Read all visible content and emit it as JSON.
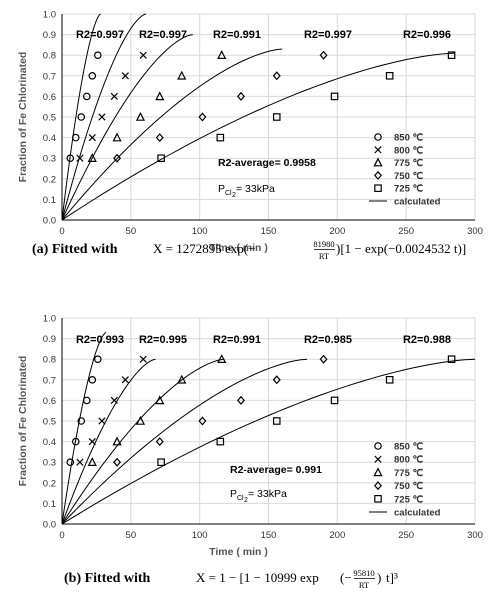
{
  "chart_data": [
    {
      "type": "scatter",
      "panel": "a",
      "xlabel": "Time ( min )",
      "ylabel": "Fraction of Fe Chlorinated",
      "xlim": [
        0,
        300
      ],
      "ylim": [
        0,
        1.0
      ],
      "x_ticks": [
        "0",
        "50",
        "100",
        "150",
        "200",
        "250",
        "300"
      ],
      "y_ticks": [
        "0.0",
        "0.1",
        "0.2",
        "0.3",
        "0.4",
        "0.5",
        "0.6",
        "0.7",
        "0.8",
        "0.9",
        "1.0"
      ],
      "grid": true,
      "legend_position": "bottom-right",
      "series": [
        {
          "name": "850 ℃",
          "marker": "circle",
          "x": [
            6,
            10,
            14,
            18,
            22,
            26
          ],
          "y": [
            0.3,
            0.4,
            0.5,
            0.6,
            0.7,
            0.8
          ],
          "fit_end": [
            28,
            1.0
          ]
        },
        {
          "name": "800 ℃",
          "marker": "cross",
          "x": [
            13,
            22,
            29,
            38,
            46,
            59
          ],
          "y": [
            0.3,
            0.4,
            0.5,
            0.6,
            0.7,
            0.8
          ],
          "fit_end": [
            61,
            1.0
          ]
        },
        {
          "name": "775 ℃",
          "marker": "triangle",
          "x": [
            22,
            40,
            57,
            71,
            87,
            116
          ],
          "y": [
            0.3,
            0.4,
            0.5,
            0.6,
            0.7,
            0.8
          ],
          "fit_end": [
            95,
            0.9
          ]
        },
        {
          "name": "750 ℃",
          "marker": "diamond",
          "x": [
            40,
            71,
            102,
            130,
            156,
            190
          ],
          "y": [
            0.3,
            0.4,
            0.5,
            0.6,
            0.7,
            0.8
          ],
          "fit_end": [
            160,
            0.83
          ]
        },
        {
          "name": "725 ℃",
          "marker": "square",
          "x": [
            72,
            115,
            156,
            198,
            238,
            283
          ],
          "y": [
            0.3,
            0.4,
            0.5,
            0.6,
            0.7,
            0.8
          ],
          "fit_end": [
            285,
            0.81
          ]
        }
      ],
      "fit_legend": "calculated",
      "r2_labels": [
        "R2=0.997",
        "R2=0.997",
        "R2=0.991",
        "R2=0.997",
        "R2=0.996"
      ],
      "r2_average": "R2-average= 0.9958",
      "pressure_main": "P",
      "pressure_sub": "Cl",
      "pressure_subsub": "2",
      "pressure_value": " = 33kPa",
      "caption_prefix": "(a) Fitted  with",
      "caption_equation": "X = 1272895 exp(−",
      "caption_frac_num": "81980",
      "caption_frac_den": "RT",
      "caption_equation_tail": ")[1 − exp(−0.0024532 t)]"
    },
    {
      "type": "scatter",
      "panel": "b",
      "xlabel": "Time ( min )",
      "ylabel": "Fraction of Fe Chlorinated",
      "xlim": [
        0,
        300
      ],
      "ylim": [
        0,
        1.0
      ],
      "x_ticks": [
        "0",
        "50",
        "100",
        "150",
        "200",
        "250",
        "300"
      ],
      "y_ticks": [
        "0.0",
        "0.1",
        "0.2",
        "0.3",
        "0.4",
        "0.5",
        "0.6",
        "0.7",
        "0.8",
        "0.9",
        "1.0"
      ],
      "grid": true,
      "legend_position": "bottom-right",
      "series": [
        {
          "name": "850 ℃",
          "marker": "circle",
          "x": [
            6,
            10,
            14,
            18,
            22,
            26
          ],
          "y": [
            0.3,
            0.4,
            0.5,
            0.6,
            0.7,
            0.8
          ],
          "fit_end": [
            32,
            0.93
          ]
        },
        {
          "name": "800 ℃",
          "marker": "cross",
          "x": [
            13,
            22,
            29,
            38,
            46,
            59
          ],
          "y": [
            0.3,
            0.4,
            0.5,
            0.6,
            0.7,
            0.8
          ],
          "fit_end": [
            68,
            0.8
          ]
        },
        {
          "name": "775 ℃",
          "marker": "triangle",
          "x": [
            22,
            40,
            57,
            71,
            87,
            116
          ],
          "y": [
            0.3,
            0.4,
            0.5,
            0.6,
            0.7,
            0.8
          ],
          "fit_end": [
            118,
            0.8
          ]
        },
        {
          "name": "750 ℃",
          "marker": "diamond",
          "x": [
            40,
            71,
            102,
            130,
            156,
            190
          ],
          "y": [
            0.3,
            0.4,
            0.5,
            0.6,
            0.7,
            0.8
          ],
          "fit_end": [
            178,
            0.8
          ]
        },
        {
          "name": "725 ℃",
          "marker": "square",
          "x": [
            72,
            115,
            156,
            198,
            238,
            283
          ],
          "y": [
            0.3,
            0.4,
            0.5,
            0.6,
            0.7,
            0.8
          ],
          "fit_end": [
            300,
            0.8
          ]
        }
      ],
      "fit_legend": "calculated",
      "r2_labels": [
        "R2=0.993",
        "R2=0.995",
        "R2=0.991",
        "R2=0.985",
        "R2=0.988"
      ],
      "r2_average": "R2-average= 0.991",
      "pressure_main": "P",
      "pressure_sub": "Cl",
      "pressure_subsub": "2",
      "pressure_value": " = 33kPa",
      "caption_prefix": "(b)  Fitted  with",
      "caption_equation": "X = 1 − [1 − 10999 exp",
      "caption_frac_num": "95810",
      "caption_frac_den": "RT",
      "caption_equation_tail": "t]³"
    }
  ]
}
